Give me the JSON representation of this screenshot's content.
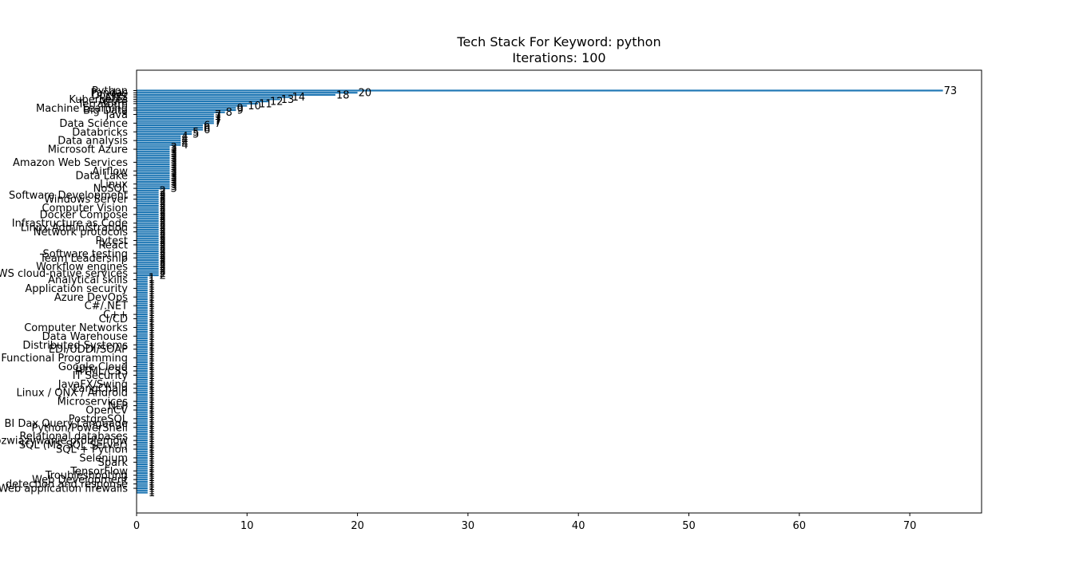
{
  "chart_data": {
    "type": "bar",
    "orientation": "horizontal",
    "title": "Tech Stack For Keyword: python",
    "subtitle": "Iterations: 100",
    "xlabel": "",
    "ylabel": "",
    "xlim": [
      0,
      76.5
    ],
    "xticks": [
      0,
      10,
      20,
      30,
      40,
      50,
      60,
      70
    ],
    "grid": false,
    "bar_color": "#1f77b4",
    "n_bars": 186,
    "ranked_values": [
      73,
      20,
      18,
      14,
      13,
      12,
      11,
      10,
      9,
      9,
      8,
      7,
      7,
      7,
      7,
      7,
      6,
      6,
      6,
      5,
      5,
      4,
      4,
      4,
      4,
      4,
      3,
      3,
      3,
      3,
      3,
      3,
      3,
      3,
      3,
      3,
      3,
      3,
      3,
      3,
      3,
      3,
      3,
      3,
      3,
      3,
      2,
      2,
      2,
      2,
      2,
      2,
      2,
      2,
      2,
      2,
      2,
      2,
      2,
      2,
      2,
      2,
      2,
      2,
      2,
      2,
      2,
      2,
      2,
      2,
      2,
      2,
      2,
      2,
      2,
      2,
      2,
      2,
      2,
      2,
      2,
      2,
      2,
      2,
      2,
      2
    ],
    "remaining_value": 1,
    "visible_category_labels": [
      {
        "rank": 1,
        "label": "Python"
      },
      {
        "rank": 2,
        "label": "Pandas"
      },
      {
        "rank": 3,
        "label": "Docker"
      },
      {
        "rank": 4,
        "label": "AWS"
      },
      {
        "rank": 5,
        "label": "Kubernetes"
      },
      {
        "rank": 6,
        "label": "Azure"
      },
      {
        "rank": 7,
        "label": "Terraform"
      },
      {
        "rank": 9,
        "label": "Machine Learning"
      },
      {
        "rank": 10,
        "label": "Big Data"
      },
      {
        "rank": 12,
        "label": "Java"
      },
      {
        "rank": 16,
        "label": "Data Science"
      },
      {
        "rank": 20,
        "label": "Databricks"
      },
      {
        "rank": 24,
        "label": "Data analysis"
      },
      {
        "rank": 28,
        "label": "Microsoft Azure"
      },
      {
        "rank": 34,
        "label": "Amazon Web Services"
      },
      {
        "rank": 38,
        "label": "Airflow"
      },
      {
        "rank": 40,
        "label": "Data Lake"
      },
      {
        "rank": 44,
        "label": "Linux"
      },
      {
        "rank": 46,
        "label": "NoSQL"
      },
      {
        "rank": 49,
        "label": "Software Development"
      },
      {
        "rank": 51,
        "label": "Windows Server"
      },
      {
        "rank": 55,
        "label": "Computer Vision"
      },
      {
        "rank": 58,
        "label": "Docker Compose"
      },
      {
        "rank": 62,
        "label": "Infrastructure as Code"
      },
      {
        "rank": 64,
        "label": "Linux Administration"
      },
      {
        "rank": 66,
        "label": "Network protocols"
      },
      {
        "rank": 70,
        "label": "Pytest"
      },
      {
        "rank": 72,
        "label": "React"
      },
      {
        "rank": 76,
        "label": "Software testing"
      },
      {
        "rank": 78,
        "label": "Team Leadership"
      },
      {
        "rank": 82,
        "label": "Workflow engines"
      },
      {
        "rank": 85,
        "label": "AWS cloud-native services"
      },
      {
        "rank": 88,
        "label": "Analytical skills"
      },
      {
        "rank": 92,
        "label": "Application security"
      },
      {
        "rank": 96,
        "label": "Azure DevOps"
      },
      {
        "rank": 100,
        "label": "C#/.NET"
      },
      {
        "rank": 104,
        "label": "C++"
      },
      {
        "rank": 106,
        "label": "CI/CD"
      },
      {
        "rank": 110,
        "label": "Computer Networks"
      },
      {
        "rank": 114,
        "label": "Data Warehouse"
      },
      {
        "rank": 118,
        "label": "Distributed Systems"
      },
      {
        "rank": 120,
        "label": "EDI/UDDI/SOAP"
      },
      {
        "rank": 124,
        "label": "Functional Programming"
      },
      {
        "rank": 128,
        "label": "Google Cloud"
      },
      {
        "rank": 130,
        "label": "HTML/CSS"
      },
      {
        "rank": 132,
        "label": "IT Security"
      },
      {
        "rank": 136,
        "label": "JavaFX/Swing"
      },
      {
        "rank": 138,
        "label": "LangChain"
      },
      {
        "rank": 140,
        "label": "Linux / QNX / Android"
      },
      {
        "rank": 144,
        "label": "Microservices"
      },
      {
        "rank": 146,
        "label": "NLP"
      },
      {
        "rank": 148,
        "label": "OpenCV"
      },
      {
        "rank": 152,
        "label": "PostgreSQL"
      },
      {
        "rank": 154,
        "label": "BI Dax Query Language"
      },
      {
        "rank": 156,
        "label": "Python/PowerShell"
      },
      {
        "rank": 160,
        "label": "Relational databases"
      },
      {
        "rank": 162,
        "label": "Rozwiązywanie problemów"
      },
      {
        "rank": 164,
        "label": "SQL (MS SQL Server)"
      },
      {
        "rank": 166,
        "label": "SQL + Python"
      },
      {
        "rank": 170,
        "label": "Selenium"
      },
      {
        "rank": 172,
        "label": "Spark"
      },
      {
        "rank": 176,
        "label": "TensorFlow"
      },
      {
        "rank": 178,
        "label": "Troubleshooting"
      },
      {
        "rank": 180,
        "label": "Web Development"
      },
      {
        "rank": 182,
        "label": "detection and response"
      },
      {
        "rank": 184,
        "label": "Web application firewalls"
      }
    ]
  }
}
